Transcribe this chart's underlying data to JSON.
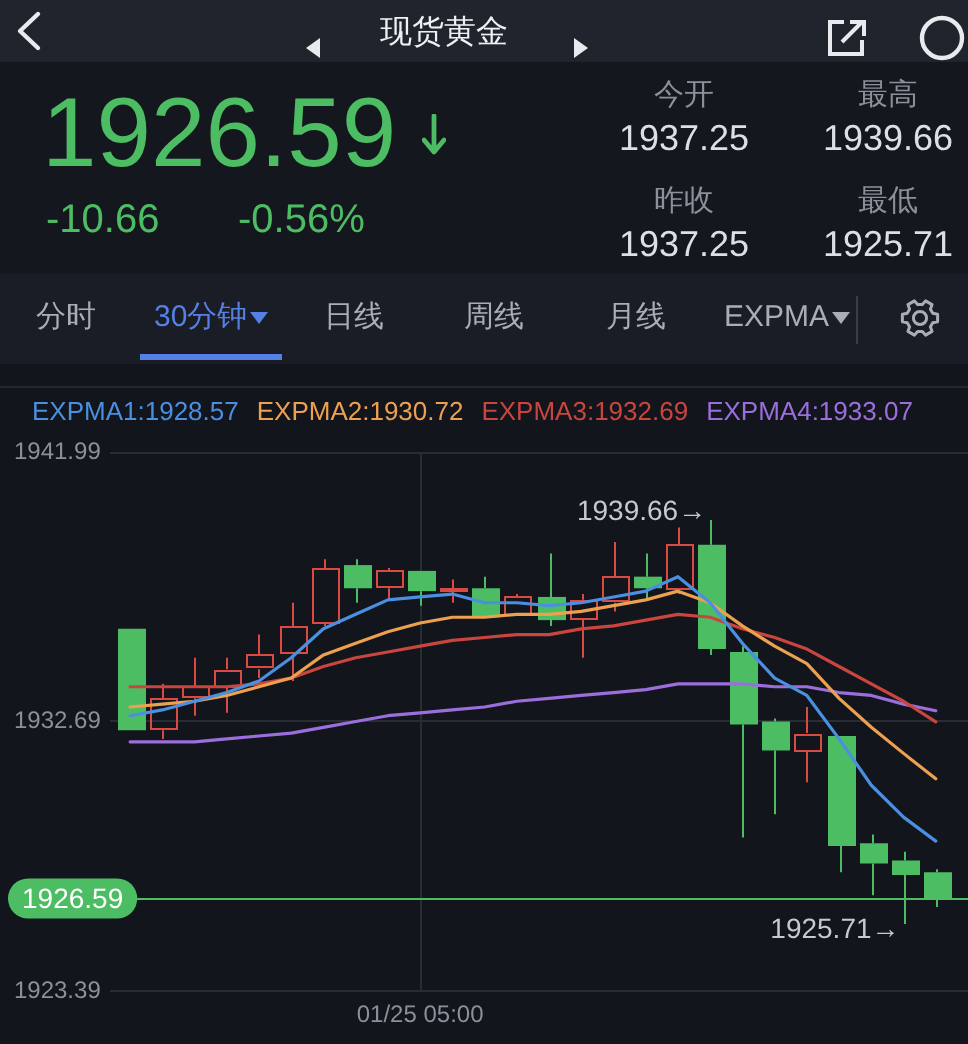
{
  "chart_data": {
    "type": "candlestick",
    "title": "现货黄金",
    "categories": [
      null,
      null,
      null,
      null,
      null,
      null,
      null,
      null,
      null,
      "01/25 05:00",
      null,
      null,
      null,
      null,
      null,
      null,
      null,
      null,
      null,
      null,
      null,
      null,
      null,
      null,
      null,
      null
    ],
    "ohlc": [
      [
        1935.9,
        1935.9,
        1932.4,
        1932.4
      ],
      [
        1932.4,
        1934.0,
        1932.1,
        1933.5
      ],
      [
        1933.5,
        1934.9,
        1932.9,
        1933.9
      ],
      [
        1933.9,
        1934.9,
        1933.0,
        1934.5
      ],
      [
        1934.5,
        1935.7,
        1934.2,
        1935.0
      ],
      [
        1935.0,
        1936.8,
        1934.1,
        1936.0
      ],
      [
        1936.1,
        1938.3,
        1936.0,
        1938.0
      ],
      [
        1938.1,
        1938.3,
        1936.8,
        1937.3
      ],
      [
        1937.3,
        1938.0,
        1936.9,
        1937.9
      ],
      [
        1937.9,
        1937.9,
        1936.7,
        1937.2
      ],
      [
        1937.2,
        1937.6,
        1936.8,
        1937.3
      ],
      [
        1937.3,
        1937.7,
        1936.3,
        1936.3
      ],
      [
        1936.3,
        1937.1,
        1936.3,
        1937.0
      ],
      [
        1937.0,
        1938.5,
        1936.0,
        1936.2
      ],
      [
        1936.2,
        1937.1,
        1934.9,
        1936.9
      ],
      [
        1936.8,
        1938.9,
        1936.5,
        1937.7
      ],
      [
        1937.7,
        1938.5,
        1936.9,
        1937.3
      ],
      [
        1937.2,
        1939.4,
        1937.1,
        1938.8
      ],
      [
        1938.8,
        1939.66,
        1935.0,
        1935.2
      ],
      [
        1935.1,
        1935.3,
        1928.7,
        1932.6
      ],
      [
        1932.7,
        1932.8,
        1929.5,
        1931.7
      ],
      [
        1931.7,
        1933.2,
        1930.6,
        1932.3
      ],
      [
        1932.2,
        1932.2,
        1927.5,
        1928.4
      ],
      [
        1928.5,
        1928.8,
        1926.7,
        1927.8
      ],
      [
        1927.9,
        1928.2,
        1925.71,
        1927.4
      ],
      [
        1927.5,
        1927.6,
        1926.3,
        1926.59
      ]
    ],
    "colors": [
      "#4dbd63",
      "#d94a42",
      "#d94a42",
      "#d94a42",
      "#d94a42",
      "#d94a42",
      "#d94a42",
      "#4dbd63",
      "#d94a42",
      "#4dbd63",
      "#d94a42",
      "#4dbd63",
      "#d94a42",
      "#4dbd63",
      "#d94a42",
      "#d94a42",
      "#4dbd63",
      "#d94a42",
      "#4dbd63",
      "#4dbd63",
      "#4dbd63",
      "#d94a42",
      "#4dbd63",
      "#4dbd63",
      "#4dbd63",
      "#4dbd63"
    ],
    "series": [
      {
        "name": "EXPMA1:1928.57",
        "type": "line",
        "color": "#4a8fe0",
        "values": [
          1932.9,
          1933.1,
          1933.4,
          1933.7,
          1934.1,
          1934.9,
          1935.9,
          1936.4,
          1936.9,
          1937.0,
          1937.1,
          1936.8,
          1936.8,
          1936.7,
          1936.8,
          1937.0,
          1937.2,
          1937.7,
          1936.8,
          1935.4,
          1934.2,
          1933.6,
          1932.1,
          1930.5,
          1929.4,
          1928.57
        ]
      },
      {
        "name": "EXPMA2:1930.72",
        "type": "line",
        "color": "#eda04e",
        "values": [
          1933.2,
          1933.3,
          1933.4,
          1933.6,
          1933.9,
          1934.2,
          1935.0,
          1935.4,
          1935.8,
          1936.1,
          1936.3,
          1936.3,
          1936.4,
          1936.4,
          1936.5,
          1936.7,
          1936.9,
          1937.2,
          1936.8,
          1936.0,
          1935.3,
          1934.7,
          1933.5,
          1932.5,
          1931.6,
          1930.72
        ]
      },
      {
        "name": "EXPMA3:1932.69",
        "type": "line",
        "color": "#c9453d",
        "values": [
          1933.9,
          1933.9,
          1933.9,
          1933.9,
          1934.0,
          1934.2,
          1934.6,
          1934.9,
          1935.1,
          1935.3,
          1935.5,
          1935.6,
          1935.7,
          1935.7,
          1935.9,
          1936.0,
          1936.2,
          1936.4,
          1936.3,
          1935.9,
          1935.6,
          1935.2,
          1934.6,
          1934.0,
          1933.4,
          1932.69
        ]
      },
      {
        "name": "EXPMA4:1933.07",
        "type": "line",
        "color": "#9a6fdc",
        "values": [
          1932.0,
          1932.0,
          1932.0,
          1932.1,
          1932.2,
          1932.3,
          1932.5,
          1932.7,
          1932.9,
          1933.0,
          1933.1,
          1933.2,
          1933.4,
          1933.5,
          1933.6,
          1933.7,
          1933.8,
          1934.0,
          1934.0,
          1934.0,
          1933.9,
          1933.9,
          1933.7,
          1933.6,
          1933.3,
          1933.07
        ]
      }
    ],
    "ylim": [
      1923.39,
      1941.99
    ],
    "yticks": [
      1941.99,
      1932.69,
      1923.39
    ],
    "grid": true,
    "legend": "top",
    "marker": "none",
    "ref_lines": [
      {
        "axis": "y",
        "value": 1926.59,
        "label": "1926.59",
        "color": "#4dbd63"
      }
    ],
    "annotations": [
      "1926.59",
      "-10.66",
      "-0.56%",
      "今开",
      "1937.25",
      "最高",
      "1939.66",
      "昨收",
      "1937.25",
      "最低",
      "1925.71",
      "分时",
      "30分钟",
      "日线",
      "周线",
      "月线",
      "EXPMA",
      "1939.66→",
      "1925.71→"
    ]
  }
}
